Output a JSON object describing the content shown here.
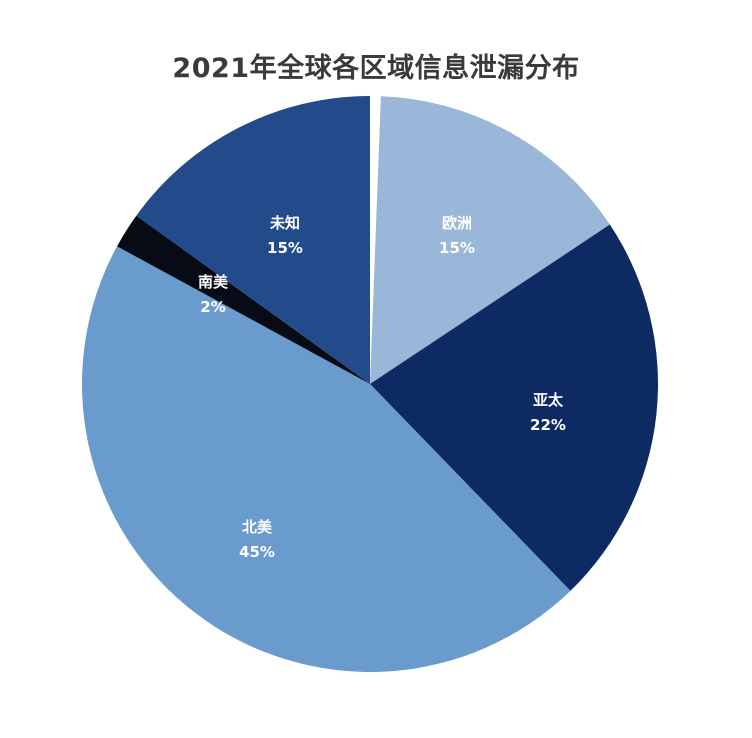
{
  "chart_data": {
    "type": "pie",
    "title": "2021年全球各区域信息泄漏分布",
    "start_offset_percent": 0.6,
    "slices": [
      {
        "label": "欧洲",
        "value": 15,
        "value_label": "15%",
        "color": "#9ab7d9"
      },
      {
        "label": "亚太",
        "value": 22,
        "value_label": "22%",
        "color": "#0d2b62"
      },
      {
        "label": "北美",
        "value": 45,
        "value_label": "45%",
        "color": "#6a9bcd"
      },
      {
        "label": "南美",
        "value": 2,
        "value_label": "2%",
        "color": "#070b16"
      },
      {
        "label": "未知",
        "value": 15,
        "value_label": "15%",
        "color": "#234b8c"
      }
    ]
  }
}
